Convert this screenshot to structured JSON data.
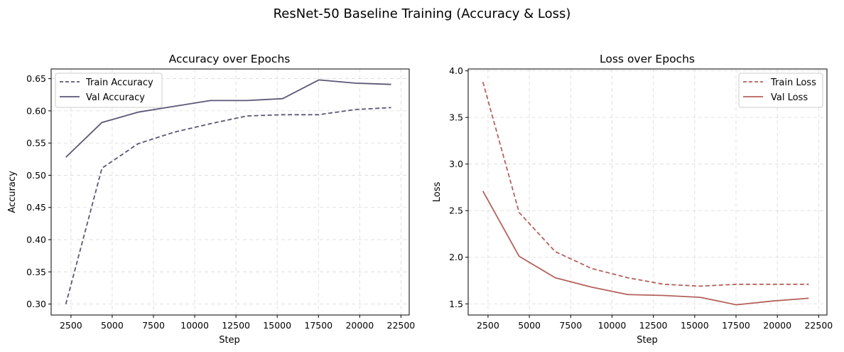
{
  "figure": {
    "suptitle": "ResNet-50 Baseline Training (Accuracy & Loss)"
  },
  "chart_data": [
    {
      "type": "line",
      "title": "Accuracy over Epochs",
      "xlabel": "Step",
      "ylabel": "Accuracy",
      "xlim": [
        1300,
        23000
      ],
      "ylim": [
        0.283,
        0.665
      ],
      "xticks": [
        2500,
        5000,
        7500,
        10000,
        12500,
        15000,
        17500,
        20000,
        22500
      ],
      "xtick_labels": [
        "2500",
        "5000",
        "7500",
        "10000",
        "12500",
        "15000",
        "17500",
        "20000",
        "22500"
      ],
      "yticks": [
        0.3,
        0.35,
        0.4,
        0.45,
        0.5,
        0.55,
        0.6,
        0.65
      ],
      "ytick_labels": [
        "0.30",
        "0.35",
        "0.40",
        "0.45",
        "0.50",
        "0.55",
        "0.60",
        "0.65"
      ],
      "grid": true,
      "legend_position": "upper-left",
      "x": [
        2190,
        4380,
        6570,
        8760,
        10950,
        13140,
        15330,
        17520,
        19710,
        21900
      ],
      "series": [
        {
          "name": "Train Accuracy",
          "style": "dashed",
          "color": "#5c5776",
          "values": [
            0.3,
            0.511,
            0.549,
            0.567,
            0.58,
            0.592,
            0.594,
            0.594,
            0.602,
            0.605
          ]
        },
        {
          "name": "Val Accuracy",
          "style": "solid",
          "color": "#5c5776",
          "values": [
            0.528,
            0.582,
            0.598,
            0.607,
            0.616,
            0.616,
            0.619,
            0.648,
            0.643,
            0.641
          ]
        }
      ]
    },
    {
      "type": "line",
      "title": "Loss over Epochs",
      "xlabel": "Step",
      "ylabel": "Loss",
      "xlim": [
        1300,
        23000
      ],
      "ylim": [
        1.38,
        4.02
      ],
      "xticks": [
        2500,
        5000,
        7500,
        10000,
        12500,
        15000,
        17500,
        20000,
        22500
      ],
      "xtick_labels": [
        "2500",
        "5000",
        "7500",
        "10000",
        "12500",
        "15000",
        "17500",
        "20000",
        "22500"
      ],
      "yticks": [
        1.5,
        2.0,
        2.5,
        3.0,
        3.5,
        4.0
      ],
      "ytick_labels": [
        "1.5",
        "2.0",
        "2.5",
        "3.0",
        "3.5",
        "4.0"
      ],
      "grid": true,
      "legend_position": "upper-right",
      "x": [
        2190,
        4380,
        6570,
        8760,
        10950,
        13140,
        15330,
        17520,
        19710,
        21900
      ],
      "series": [
        {
          "name": "Train Loss",
          "style": "dashed",
          "color": "#b5625c",
          "values": [
            3.88,
            2.48,
            2.06,
            1.88,
            1.78,
            1.71,
            1.69,
            1.71,
            1.71,
            1.71
          ]
        },
        {
          "name": "Val Loss",
          "style": "solid",
          "color": "#b5625c",
          "values": [
            2.71,
            2.01,
            1.78,
            1.68,
            1.6,
            1.59,
            1.57,
            1.49,
            1.53,
            1.56
          ]
        }
      ]
    }
  ]
}
